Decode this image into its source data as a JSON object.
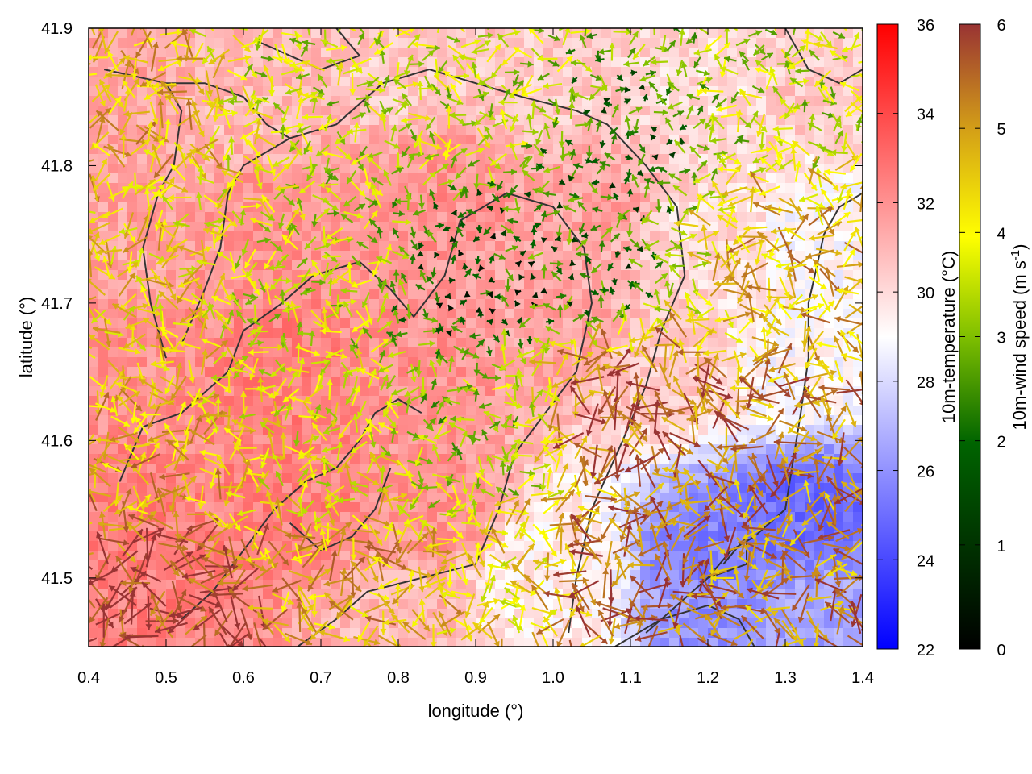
{
  "chart_data": {
    "type": "heatmap",
    "description_free": true,
    "xlabel": "longitude (°)",
    "ylabel": "latitude (°)",
    "xlim": [
      0.4,
      1.4
    ],
    "ylim": [
      41.45,
      41.9
    ],
    "x_ticks": [
      {
        "value": 0.4,
        "label": "0.4"
      },
      {
        "value": 0.5,
        "label": "0.5"
      },
      {
        "value": 0.6,
        "label": "0.6"
      },
      {
        "value": 0.7,
        "label": "0.7"
      },
      {
        "value": 0.8,
        "label": "0.8"
      },
      {
        "value": 0.9,
        "label": "0.9"
      },
      {
        "value": 1.0,
        "label": "1.0"
      },
      {
        "value": 1.1,
        "label": "1.1"
      },
      {
        "value": 1.2,
        "label": "1.2"
      },
      {
        "value": 1.3,
        "label": "1.3"
      },
      {
        "value": 1.4,
        "label": "1.4"
      }
    ],
    "y_ticks": [
      {
        "value": 41.5,
        "label": "41.5"
      },
      {
        "value": 41.6,
        "label": "41.6"
      },
      {
        "value": 41.7,
        "label": "41.7"
      },
      {
        "value": 41.8,
        "label": "41.8"
      },
      {
        "value": 41.9,
        "label": "41.9"
      }
    ],
    "temperature_colorbar": {
      "label": "10m-temperature (°C)",
      "range": [
        22,
        36
      ],
      "ticks": [
        {
          "value": 22,
          "label": "22"
        },
        {
          "value": 24,
          "label": "24"
        },
        {
          "value": 26,
          "label": "26"
        },
        {
          "value": 28,
          "label": "28"
        },
        {
          "value": 30,
          "label": "30"
        },
        {
          "value": 32,
          "label": "32"
        },
        {
          "value": 34,
          "label": "34"
        },
        {
          "value": 36,
          "label": "36"
        }
      ],
      "colors": [
        "#0000ff",
        "#ffffff",
        "#ff0000"
      ]
    },
    "wind_colorbar": {
      "label": "10m-wind speed (m s",
      "label_superscript": "-1",
      "label_close": ")",
      "range": [
        0,
        6
      ],
      "ticks": [
        {
          "value": 0,
          "label": "0"
        },
        {
          "value": 1,
          "label": "1"
        },
        {
          "value": 2,
          "label": "2"
        },
        {
          "value": 3,
          "label": "3"
        },
        {
          "value": 4,
          "label": "4"
        },
        {
          "value": 5,
          "label": "5"
        },
        {
          "value": 6,
          "label": "6"
        }
      ],
      "colors": [
        "#000000",
        "#006400",
        "#7fbf00",
        "#ffff00",
        "#d4a017",
        "#993333"
      ]
    },
    "temperature_field_approx": [
      {
        "lon": 0.45,
        "lat": 41.85,
        "temp_c": 31.5
      },
      {
        "lon": 0.6,
        "lat": 41.85,
        "temp_c": 31.0
      },
      {
        "lon": 0.8,
        "lat": 41.87,
        "temp_c": 30.5
      },
      {
        "lon": 1.0,
        "lat": 41.86,
        "temp_c": 30.5
      },
      {
        "lon": 1.2,
        "lat": 41.86,
        "temp_c": 30.0
      },
      {
        "lon": 1.35,
        "lat": 41.86,
        "temp_c": 30.5
      },
      {
        "lon": 0.45,
        "lat": 41.75,
        "temp_c": 31.5
      },
      {
        "lon": 0.65,
        "lat": 41.75,
        "temp_c": 32.0
      },
      {
        "lon": 0.85,
        "lat": 41.78,
        "temp_c": 32.0
      },
      {
        "lon": 1.05,
        "lat": 41.77,
        "temp_c": 31.5
      },
      {
        "lon": 1.2,
        "lat": 41.75,
        "temp_c": 30.0
      },
      {
        "lon": 1.35,
        "lat": 41.75,
        "temp_c": 29.0
      },
      {
        "lon": 0.45,
        "lat": 41.65,
        "temp_c": 32.0
      },
      {
        "lon": 0.65,
        "lat": 41.65,
        "temp_c": 32.5
      },
      {
        "lon": 0.85,
        "lat": 41.65,
        "temp_c": 32.0
      },
      {
        "lon": 1.0,
        "lat": 41.68,
        "temp_c": 31.5
      },
      {
        "lon": 1.15,
        "lat": 41.65,
        "temp_c": 30.5
      },
      {
        "lon": 1.32,
        "lat": 41.65,
        "temp_c": 29.0
      },
      {
        "lon": 0.45,
        "lat": 41.55,
        "temp_c": 32.5
      },
      {
        "lon": 0.65,
        "lat": 41.55,
        "temp_c": 32.5
      },
      {
        "lon": 0.85,
        "lat": 41.55,
        "temp_c": 32.0
      },
      {
        "lon": 1.0,
        "lat": 41.52,
        "temp_c": 29.5
      },
      {
        "lon": 1.2,
        "lat": 41.52,
        "temp_c": 25.5
      },
      {
        "lon": 1.33,
        "lat": 41.55,
        "temp_c": 25.0
      },
      {
        "lon": 0.5,
        "lat": 41.47,
        "temp_c": 32.5
      },
      {
        "lon": 0.8,
        "lat": 41.47,
        "temp_c": 31.0
      },
      {
        "lon": 1.0,
        "lat": 41.47,
        "temp_c": 29.5
      },
      {
        "lon": 1.2,
        "lat": 41.47,
        "temp_c": 26.0
      },
      {
        "lon": 1.35,
        "lat": 41.47,
        "temp_c": 26.5
      }
    ],
    "wind_field_approx": [
      {
        "lon": 0.45,
        "lat": 41.85,
        "speed": 4.5
      },
      {
        "lon": 0.7,
        "lat": 41.87,
        "speed": 3.0
      },
      {
        "lon": 0.9,
        "lat": 41.85,
        "speed": 3.0
      },
      {
        "lon": 1.1,
        "lat": 41.82,
        "speed": 1.5
      },
      {
        "lon": 1.3,
        "lat": 41.85,
        "speed": 3.0
      },
      {
        "lon": 0.45,
        "lat": 41.72,
        "speed": 4.0
      },
      {
        "lon": 0.7,
        "lat": 41.72,
        "speed": 3.0
      },
      {
        "lon": 0.9,
        "lat": 41.72,
        "speed": 1.0
      },
      {
        "lon": 1.05,
        "lat": 41.74,
        "speed": 1.5
      },
      {
        "lon": 1.3,
        "lat": 41.74,
        "speed": 4.5
      },
      {
        "lon": 0.45,
        "lat": 41.6,
        "speed": 4.5
      },
      {
        "lon": 0.7,
        "lat": 41.6,
        "speed": 3.5
      },
      {
        "lon": 0.9,
        "lat": 41.6,
        "speed": 2.5
      },
      {
        "lon": 1.1,
        "lat": 41.62,
        "speed": 5.5
      },
      {
        "lon": 1.3,
        "lat": 41.6,
        "speed": 5.0
      },
      {
        "lon": 0.5,
        "lat": 41.48,
        "speed": 6.0
      },
      {
        "lon": 0.75,
        "lat": 41.5,
        "speed": 4.5
      },
      {
        "lon": 0.95,
        "lat": 41.5,
        "speed": 4.0
      },
      {
        "lon": 1.1,
        "lat": 41.5,
        "speed": 5.5
      },
      {
        "lon": 1.3,
        "lat": 41.5,
        "speed": 5.0
      }
    ]
  }
}
